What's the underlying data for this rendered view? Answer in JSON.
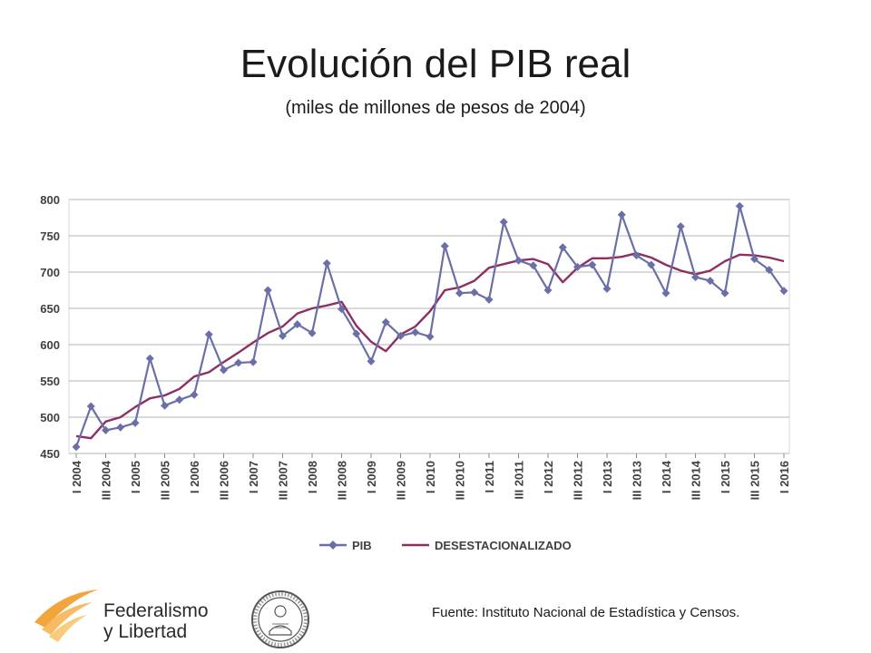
{
  "title": "Evolución del PIB real",
  "subtitle": "(miles de millones de pesos de 2004)",
  "source": "Fuente: Instituto Nacional de Estadística y Censos.",
  "logo": {
    "line1": "Federalismo",
    "line2": "y Libertad"
  },
  "colors": {
    "pib": "#6b6fa8",
    "desest": "#8e2f64",
    "grid": "#b5b5b5",
    "logo_orange": "#f0a030"
  },
  "chart_data": {
    "type": "line",
    "ylim": [
      450,
      800
    ],
    "yticks": [
      450,
      500,
      550,
      600,
      650,
      700,
      750,
      800
    ],
    "x_tick_labels": [
      "I 2004",
      "III 2004",
      "I 2005",
      "III 2005",
      "I 2006",
      "III 2006",
      "I 2007",
      "III 2007",
      "I 2008",
      "III 2008",
      "I 2009",
      "III 2009",
      "I 2010",
      "III 2010",
      "I 2011",
      "III 2011",
      "I 2012",
      "III 2012",
      "I 2013",
      "III 2013",
      "I 2014",
      "III 2014",
      "I 2015",
      "III 2015",
      "I 2016"
    ],
    "legend_position": "bottom",
    "grid": true,
    "series": [
      {
        "name": "PIB",
        "marker": "diamond",
        "values": [
          459,
          515,
          482,
          486,
          492,
          581,
          516,
          524,
          531,
          614,
          565,
          575,
          576,
          675,
          612,
          628,
          616,
          712,
          649,
          615,
          577,
          631,
          612,
          617,
          611,
          736,
          671,
          672,
          662,
          769,
          716,
          709,
          675,
          734,
          707,
          710,
          677,
          779,
          723,
          710,
          671,
          763,
          693,
          688,
          671,
          791,
          718,
          703,
          674
        ]
      },
      {
        "name": "DESESTACIONALIZADO",
        "marker": "none",
        "values": [
          474,
          471,
          494,
          500,
          514,
          526,
          530,
          539,
          556,
          562,
          576,
          589,
          603,
          616,
          625,
          643,
          650,
          654,
          659,
          626,
          604,
          591,
          614,
          625,
          646,
          675,
          679,
          688,
          706,
          711,
          716,
          718,
          711,
          686,
          706,
          719,
          719,
          721,
          726,
          720,
          710,
          702,
          697,
          702,
          715,
          724,
          723,
          720,
          715
        ]
      }
    ]
  }
}
